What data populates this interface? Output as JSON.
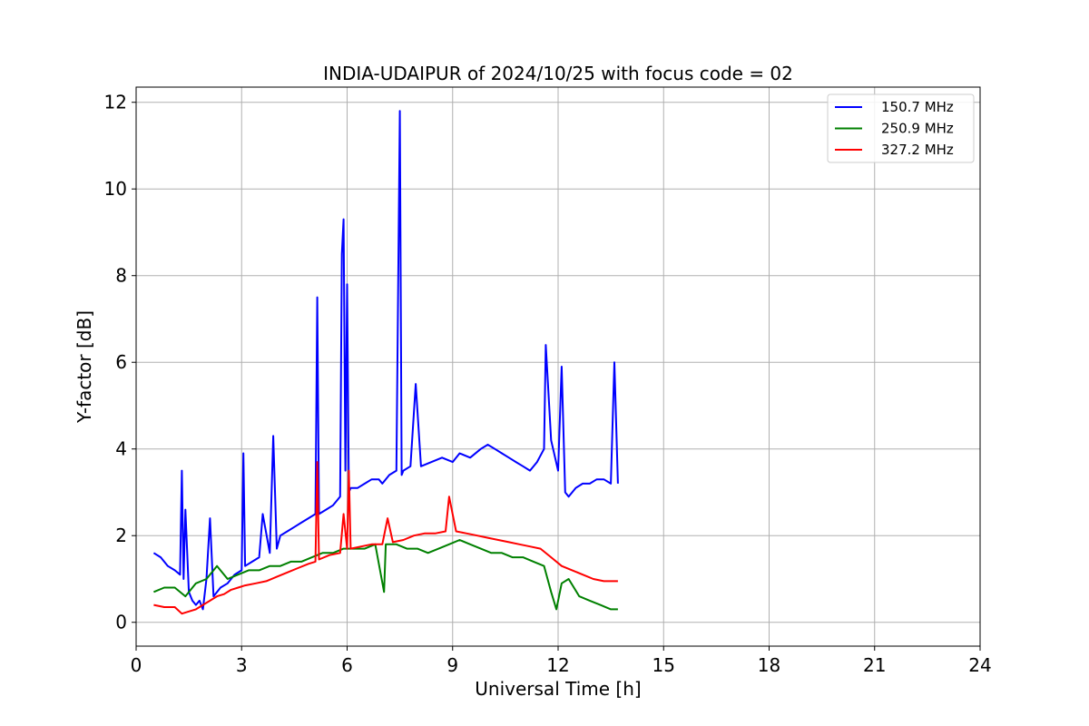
{
  "chart_data": {
    "type": "line",
    "title": "INDIA-UDAIPUR of 2024/10/25 with focus code = 02",
    "xlabel": "Universal Time [h]",
    "ylabel": "Y-factor [dB]",
    "xlim": [
      0,
      24
    ],
    "ylim": [
      -0.55,
      12.35
    ],
    "xticks": [
      0,
      3,
      6,
      9,
      12,
      15,
      18,
      21,
      24
    ],
    "yticks": [
      0,
      2,
      4,
      6,
      8,
      10,
      12
    ],
    "grid": true,
    "legend_position": "top-right",
    "series": [
      {
        "name": "150.7 MHz",
        "color": "#0000ff",
        "x": [
          0.5,
          0.7,
          0.9,
          1.1,
          1.25,
          1.3,
          1.35,
          1.4,
          1.5,
          1.6,
          1.7,
          1.8,
          1.9,
          2.0,
          2.1,
          2.2,
          2.4,
          2.6,
          2.8,
          3.0,
          3.05,
          3.1,
          3.3,
          3.5,
          3.6,
          3.8,
          3.9,
          4.0,
          4.1,
          4.3,
          4.5,
          4.7,
          4.9,
          5.1,
          5.15,
          5.2,
          5.4,
          5.6,
          5.8,
          5.85,
          5.9,
          5.95,
          6.0,
          6.05,
          6.1,
          6.3,
          6.5,
          6.7,
          6.9,
          7.0,
          7.2,
          7.4,
          7.5,
          7.55,
          7.6,
          7.8,
          7.95,
          8.1,
          8.4,
          8.7,
          9.0,
          9.2,
          9.5,
          9.8,
          10.0,
          10.2,
          10.4,
          10.6,
          10.8,
          11.0,
          11.2,
          11.4,
          11.6,
          11.65,
          11.8,
          12.0,
          12.1,
          12.2,
          12.3,
          12.5,
          12.7,
          12.9,
          13.1,
          13.3,
          13.5,
          13.6,
          13.7
        ],
        "y": [
          1.6,
          1.5,
          1.3,
          1.2,
          1.1,
          3.5,
          1.0,
          2.6,
          0.7,
          0.5,
          0.4,
          0.5,
          0.3,
          1.0,
          2.4,
          0.6,
          0.8,
          0.9,
          1.1,
          1.2,
          3.9,
          1.3,
          1.4,
          1.5,
          2.5,
          1.6,
          4.3,
          1.7,
          2.0,
          2.1,
          2.2,
          2.3,
          2.4,
          2.5,
          7.5,
          2.5,
          2.6,
          2.7,
          2.9,
          8.5,
          9.3,
          3.5,
          7.8,
          3.0,
          3.1,
          3.1,
          3.2,
          3.3,
          3.3,
          3.2,
          3.4,
          3.5,
          11.8,
          3.4,
          3.5,
          3.6,
          5.5,
          3.6,
          3.7,
          3.8,
          3.7,
          3.9,
          3.8,
          4.0,
          4.1,
          4.0,
          3.9,
          3.8,
          3.7,
          3.6,
          3.5,
          3.7,
          4.0,
          6.4,
          4.2,
          3.5,
          5.9,
          3.0,
          2.9,
          3.1,
          3.2,
          3.2,
          3.3,
          3.3,
          3.2,
          6.0,
          3.2
        ]
      },
      {
        "name": "250.9 MHz",
        "color": "#008000",
        "x": [
          0.5,
          0.8,
          1.1,
          1.4,
          1.7,
          2.0,
          2.3,
          2.6,
          2.9,
          3.2,
          3.5,
          3.8,
          4.1,
          4.4,
          4.7,
          5.0,
          5.3,
          5.6,
          5.9,
          6.2,
          6.5,
          6.8,
          7.05,
          7.1,
          7.4,
          7.7,
          8.0,
          8.3,
          8.6,
          8.9,
          9.2,
          9.5,
          9.8,
          10.1,
          10.4,
          10.7,
          11.0,
          11.3,
          11.6,
          11.8,
          11.95,
          12.1,
          12.3,
          12.6,
          12.9,
          13.2,
          13.5,
          13.7
        ],
        "y": [
          0.7,
          0.8,
          0.8,
          0.6,
          0.9,
          1.0,
          1.3,
          1.0,
          1.1,
          1.2,
          1.2,
          1.3,
          1.3,
          1.4,
          1.4,
          1.5,
          1.6,
          1.6,
          1.7,
          1.7,
          1.7,
          1.8,
          0.7,
          1.8,
          1.8,
          1.7,
          1.7,
          1.6,
          1.7,
          1.8,
          1.9,
          1.8,
          1.7,
          1.6,
          1.6,
          1.5,
          1.5,
          1.4,
          1.3,
          0.7,
          0.3,
          0.9,
          1.0,
          0.6,
          0.5,
          0.4,
          0.3,
          0.3
        ]
      },
      {
        "name": "327.2 MHz",
        "color": "#ff0000",
        "x": [
          0.5,
          0.8,
          1.1,
          1.3,
          1.5,
          1.7,
          1.9,
          2.1,
          2.3,
          2.5,
          2.7,
          2.9,
          3.1,
          3.4,
          3.7,
          4.0,
          4.3,
          4.6,
          4.9,
          5.1,
          5.15,
          5.2,
          5.5,
          5.8,
          5.9,
          6.0,
          6.05,
          6.1,
          6.4,
          6.7,
          7.0,
          7.15,
          7.3,
          7.6,
          7.9,
          8.2,
          8.5,
          8.8,
          8.9,
          9.1,
          9.4,
          9.7,
          10.0,
          10.3,
          10.6,
          10.9,
          11.2,
          11.5,
          11.8,
          12.1,
          12.4,
          12.7,
          13.0,
          13.3,
          13.5,
          13.7
        ],
        "y": [
          0.4,
          0.35,
          0.35,
          0.2,
          0.25,
          0.3,
          0.4,
          0.5,
          0.6,
          0.65,
          0.75,
          0.8,
          0.85,
          0.9,
          0.95,
          1.05,
          1.15,
          1.25,
          1.35,
          1.4,
          3.7,
          1.45,
          1.55,
          1.6,
          2.5,
          1.7,
          3.5,
          1.7,
          1.75,
          1.8,
          1.8,
          2.4,
          1.85,
          1.9,
          2.0,
          2.05,
          2.05,
          2.1,
          2.9,
          2.1,
          2.05,
          2.0,
          1.95,
          1.9,
          1.85,
          1.8,
          1.75,
          1.7,
          1.5,
          1.3,
          1.2,
          1.1,
          1.0,
          0.95,
          0.95,
          0.95
        ]
      }
    ]
  }
}
